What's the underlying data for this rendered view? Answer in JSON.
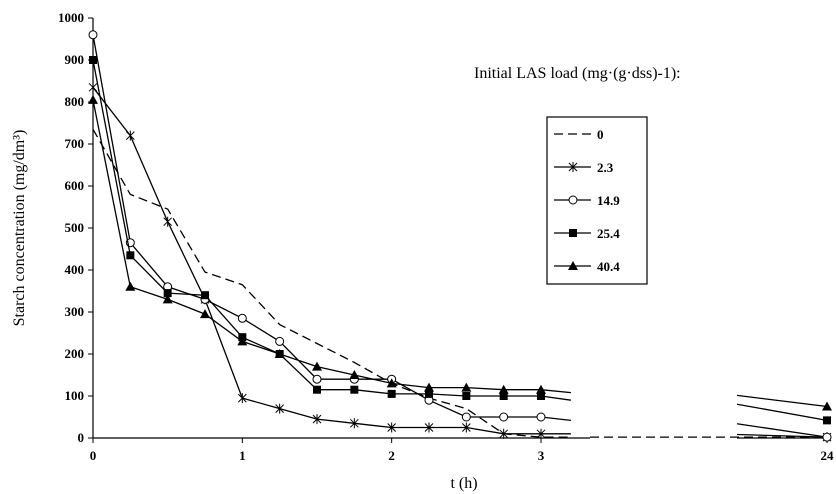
{
  "chart_data": {
    "type": "line",
    "title": "",
    "xlabel": "t (h)",
    "ylabel": "Starch concentration (mg/dm³)",
    "xlim": [
      0,
      3.2
    ],
    "ylim": [
      0,
      1000
    ],
    "x_break": {
      "after": 3.2,
      "resume_at": 24
    },
    "yticks": [
      "0",
      "100",
      "200",
      "300",
      "400",
      "500",
      "600",
      "700",
      "800",
      "900",
      "1000"
    ],
    "xticks": [
      "0",
      "1",
      "2",
      "3",
      "24"
    ],
    "legend": {
      "title": "Initial LAS load (mg·(g·dss)-1):",
      "placement": "right"
    },
    "grid": false,
    "series": [
      {
        "name": "0",
        "marker": "none",
        "style": "dashed",
        "x": [
          0,
          0.25,
          0.5,
          0.75,
          1,
          1.25,
          1.5,
          1.75,
          2,
          2.25,
          2.5,
          2.75,
          3,
          3.2,
          24
        ],
        "y": [
          735,
          580,
          545,
          395,
          365,
          270,
          225,
          180,
          130,
          95,
          70,
          10,
          2,
          2,
          2
        ]
      },
      {
        "name": "2.3",
        "marker": "star",
        "style": "solid",
        "x": [
          0,
          0.25,
          0.5,
          0.75,
          1,
          1.25,
          1.5,
          1.75,
          2,
          2.25,
          2.5,
          2.75,
          3,
          3.2,
          24
        ],
        "y": [
          835,
          720,
          515,
          330,
          95,
          70,
          45,
          35,
          25,
          25,
          25,
          10,
          10,
          10,
          2
        ]
      },
      {
        "name": "14.9",
        "marker": "circle",
        "style": "solid",
        "x": [
          0,
          0.25,
          0.5,
          0.75,
          1,
          1.25,
          1.5,
          1.75,
          2,
          2.25,
          2.5,
          2.75,
          3,
          3.2,
          24
        ],
        "y": [
          960,
          465,
          360,
          330,
          285,
          230,
          140,
          140,
          140,
          90,
          50,
          50,
          50,
          42,
          2
        ]
      },
      {
        "name": "25.4",
        "marker": "square",
        "style": "solid",
        "x": [
          0,
          0.25,
          0.5,
          0.75,
          1,
          1.25,
          1.5,
          1.75,
          2,
          2.25,
          2.5,
          2.75,
          3,
          3.2,
          24
        ],
        "y": [
          900,
          435,
          345,
          340,
          240,
          200,
          115,
          115,
          105,
          105,
          100,
          100,
          100,
          90,
          42
        ]
      },
      {
        "name": "40.4",
        "marker": "triangle",
        "style": "solid",
        "x": [
          0,
          0.25,
          0.5,
          0.75,
          1,
          1.25,
          1.5,
          1.75,
          2,
          2.25,
          2.5,
          2.75,
          3,
          3.2,
          24
        ],
        "y": [
          805,
          360,
          330,
          295,
          230,
          200,
          170,
          150,
          130,
          120,
          120,
          115,
          115,
          108,
          75
        ]
      }
    ]
  }
}
